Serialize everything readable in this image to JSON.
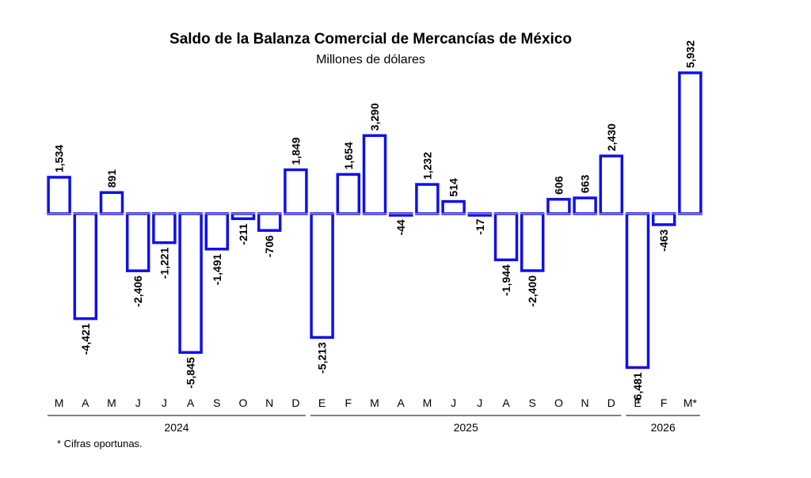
{
  "chart_data": {
    "type": "bar",
    "title": "Saldo de la Balanza Comercial de Mercancías de México",
    "subtitle": "Millones de dólares",
    "categories": [
      "M",
      "A",
      "M",
      "J",
      "J",
      "A",
      "S",
      "O",
      "N",
      "D",
      "E",
      "F",
      "M",
      "A",
      "M",
      "J",
      "J",
      "A",
      "S",
      "O",
      "N",
      "D",
      "E",
      "F",
      "M*"
    ],
    "values": [
      1534,
      -4421,
      891,
      -2406,
      -1221,
      -5845,
      -1491,
      -211,
      -706,
      1849,
      -5213,
      1654,
      3290,
      -44,
      1232,
      514,
      -17,
      -1944,
      -2400,
      606,
      663,
      2430,
      -6481,
      -463,
      5932
    ],
    "value_labels": [
      "1,534",
      "-4,421",
      "891",
      "-2,406",
      "-1,221",
      "-5,845",
      "-1,491",
      "-211",
      "-706",
      "1,849",
      "-5,213",
      "1,654",
      "3,290",
      "-44",
      "1,232",
      "514",
      "-17",
      "-1,944",
      "-2,400",
      "606",
      "663",
      "2,430",
      "-6,481",
      "-463",
      "5,932"
    ],
    "year_groups": [
      {
        "label": "2024",
        "start": 0,
        "end": 9
      },
      {
        "label": "2025",
        "start": 10,
        "end": 21
      },
      {
        "label": "2026",
        "start": 22,
        "end": 24
      }
    ],
    "footnote": "*  Cifras oportunas.",
    "bar_color": "#1010e8",
    "bar_fill": "#ffffff",
    "grid": false,
    "legend": "none"
  }
}
